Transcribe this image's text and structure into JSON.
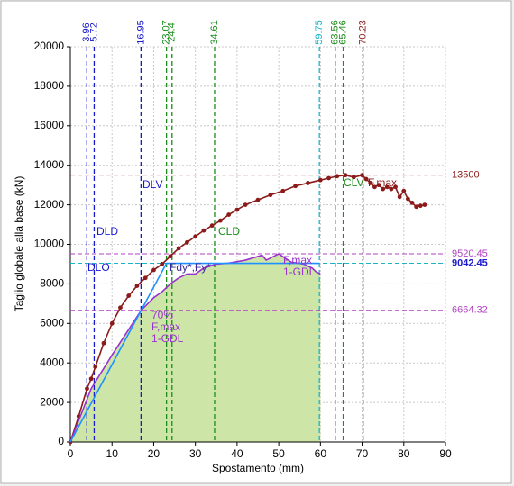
{
  "chart_data": {
    "type": "line",
    "xlabel": "Spostamento (mm)",
    "ylabel": "Taglio globale alla base (kN)",
    "xlim": [
      0,
      90
    ],
    "ylim": [
      0,
      20000
    ],
    "xticks": [
      0,
      10,
      20,
      30,
      40,
      50,
      60,
      70,
      80,
      90
    ],
    "yticks": [
      0,
      2000,
      4000,
      6000,
      8000,
      10000,
      12000,
      14000,
      16000,
      18000,
      20000
    ],
    "grid": true,
    "series": [
      {
        "color": "#8b1a1a",
        "markers": true,
        "x": [
          0,
          2,
          4,
          5,
          6,
          8,
          10,
          12,
          14,
          16,
          18,
          20,
          22,
          24,
          26,
          28,
          30,
          32,
          34,
          36,
          38,
          40,
          42,
          45,
          48,
          51,
          54,
          57,
          60,
          62,
          64,
          66,
          68,
          70,
          71,
          72,
          73,
          74,
          75,
          76,
          77,
          78,
          79,
          80,
          81,
          82,
          83,
          84,
          85
        ],
        "y": [
          0,
          1300,
          2700,
          3200,
          3800,
          5000,
          6000,
          6800,
          7400,
          7900,
          8300,
          8700,
          9000,
          9400,
          9800,
          10100,
          10400,
          10700,
          10950,
          11200,
          11500,
          11750,
          12000,
          12250,
          12500,
          12700,
          12950,
          13100,
          13250,
          13350,
          13450,
          13500,
          13400,
          13500,
          13300,
          13100,
          12900,
          13000,
          12800,
          12900,
          12800,
          12900,
          12400,
          12700,
          12300,
          12100,
          11900,
          11950,
          12000
        ]
      },
      {
        "color": "#9932cc",
        "fill": "#cde6a8",
        "x": [
          0,
          5,
          10,
          17,
          20,
          22,
          24,
          26,
          28,
          30,
          32,
          35,
          38,
          42,
          46,
          47,
          50,
          53,
          56,
          58,
          59,
          60
        ],
        "y": [
          0,
          2700,
          4400,
          6664,
          7300,
          7600,
          8000,
          8300,
          8500,
          8500,
          8800,
          9000,
          9050,
          9200,
          9450,
          9200,
          9520,
          9100,
          9000,
          8800,
          8600,
          8500
        ]
      },
      {
        "color": "#1e90ff",
        "x": [
          0,
          23.07,
          59.75
        ],
        "y": [
          0,
          9042.45,
          9042.45
        ]
      }
    ],
    "vlines": [
      {
        "value": 3.96,
        "color": "#1a1acd"
      },
      {
        "value": 5.72,
        "color": "#1a1acd"
      },
      {
        "value": 16.95,
        "color": "#1a1acd"
      },
      {
        "value": 23.07,
        "color": "#1a8c1a"
      },
      {
        "value": 24.4,
        "color": "#1a8c1a"
      },
      {
        "value": 34.61,
        "color": "#1a8c1a"
      },
      {
        "value": 59.75,
        "color": "#1ab4c8"
      },
      {
        "value": 63.56,
        "color": "#1a8c1a"
      },
      {
        "value": 65.46,
        "color": "#1a8c1a"
      },
      {
        "value": 70.23,
        "color": "#8b1a1a"
      }
    ],
    "hlines": [
      {
        "value": 13500,
        "color": "#8b1a1a"
      },
      {
        "value": 9520.45,
        "color": "#b040c0"
      },
      {
        "value": 9042.45,
        "color": "#1ab4c8",
        "label_color": "#1a1acd",
        "bold": true
      },
      {
        "value": 6664.32,
        "color": "#b040c0"
      }
    ],
    "annotations": [
      {
        "text": [
          "DLO"
        ],
        "color": "#1a1acd"
      },
      {
        "text": [
          "DLD"
        ],
        "color": "#1a1acd"
      },
      {
        "text": [
          "DLV"
        ],
        "color": "#1a1acd"
      },
      {
        "text": [
          "CLD"
        ],
        "color": "#1a8c1a"
      },
      {
        "text": [
          "CLV"
        ],
        "color": "#1a8c1a"
      },
      {
        "text": [
          "F,max"
        ],
        "color": "#8b1a1a"
      },
      {
        "text": [
          "Fdy*,Fy*"
        ],
        "color": "#3a2a9a"
      },
      {
        "text": [
          "70%",
          "F,max",
          "1-GDL"
        ],
        "color": "#9932cc"
      },
      {
        "text": [
          "F,max",
          "1-GDL"
        ],
        "color": "#9932cc"
      }
    ]
  }
}
